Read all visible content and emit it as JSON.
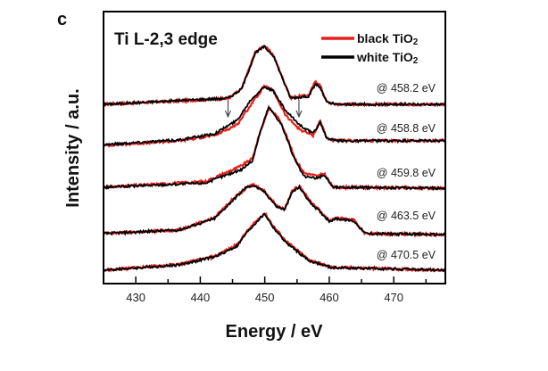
{
  "chart_data": {
    "type": "line",
    "panel_label": "c",
    "title": "Ti L-2,3 edge",
    "xlabel": "Energy / eV",
    "ylabel": "Intensity / a.u.",
    "xlim": [
      425,
      478
    ],
    "ylim": [
      0,
      10
    ],
    "xticks": [
      430,
      440,
      450,
      460,
      470
    ],
    "xminor_ticks": [
      435,
      445,
      455,
      465,
      475
    ],
    "y_tick_labels": false,
    "grid": false,
    "legend_position": "top-right",
    "legend": [
      {
        "label": "black TiO",
        "sub": "2",
        "color": "#e8201c"
      },
      {
        "label": "white TiO",
        "sub": "2",
        "color": "#000000"
      }
    ],
    "arrows_on_spectrum": "@ 458.8 eV",
    "arrows_x": [
      444.3,
      455.3
    ],
    "spectra": [
      {
        "label": "@ 458.2 eV",
        "white": [
          [
            425,
            6.59
          ],
          [
            444.3,
            6.82
          ],
          [
            446.4,
            7.15
          ],
          [
            448.5,
            8.46
          ],
          [
            449.9,
            8.72
          ],
          [
            451.3,
            8.39
          ],
          [
            454,
            6.82
          ],
          [
            456.8,
            6.89
          ],
          [
            457.9,
            7.34
          ],
          [
            458.6,
            7.2
          ],
          [
            459.6,
            6.66
          ],
          [
            461,
            6.59
          ],
          [
            478,
            6.59
          ]
        ],
        "black": [
          [
            425,
            6.59
          ],
          [
            444.3,
            6.8
          ],
          [
            446.4,
            7.15
          ],
          [
            448.5,
            8.5
          ],
          [
            449.9,
            8.74
          ],
          [
            451.3,
            8.42
          ],
          [
            454,
            6.84
          ],
          [
            456.8,
            6.92
          ],
          [
            457.9,
            7.45
          ],
          [
            458.6,
            7.28
          ],
          [
            459.6,
            6.68
          ],
          [
            461,
            6.59
          ],
          [
            478,
            6.59
          ]
        ]
      },
      {
        "label": "@ 458.8 eV",
        "white": [
          [
            425,
            5.11
          ],
          [
            436.7,
            5.28
          ],
          [
            442.2,
            5.51
          ],
          [
            445.7,
            6.0
          ],
          [
            447.8,
            6.75
          ],
          [
            449.9,
            7.25
          ],
          [
            451.3,
            7.08
          ],
          [
            453.3,
            6.33
          ],
          [
            455.4,
            5.84
          ],
          [
            457.5,
            5.51
          ],
          [
            458.6,
            5.93
          ],
          [
            459.6,
            5.34
          ],
          [
            461,
            5.25
          ],
          [
            478,
            5.25
          ]
        ],
        "black": [
          [
            425,
            5.08
          ],
          [
            436.7,
            5.25
          ],
          [
            442.2,
            5.45
          ],
          [
            445.7,
            5.84
          ],
          [
            447.8,
            6.56
          ],
          [
            449.9,
            7.25
          ],
          [
            451.3,
            7.1
          ],
          [
            453.3,
            6.16
          ],
          [
            455.4,
            5.67
          ],
          [
            457.5,
            5.45
          ],
          [
            458.6,
            6.0
          ],
          [
            459.6,
            5.34
          ],
          [
            461,
            5.25
          ],
          [
            478,
            5.25
          ]
        ]
      },
      {
        "label": "@ 459.8 eV",
        "white": [
          [
            425,
            3.54
          ],
          [
            440.8,
            3.7
          ],
          [
            446.4,
            4.2
          ],
          [
            448.1,
            4.52
          ],
          [
            449.2,
            5.51
          ],
          [
            450.6,
            6.49
          ],
          [
            451.7,
            6.16
          ],
          [
            452.6,
            5.84
          ],
          [
            454.7,
            4.52
          ],
          [
            456.1,
            3.93
          ],
          [
            458.2,
            3.87
          ],
          [
            459.2,
            4.0
          ],
          [
            460.6,
            3.54
          ],
          [
            478,
            3.51
          ]
        ],
        "black": [
          [
            425,
            3.54
          ],
          [
            440.8,
            3.75
          ],
          [
            446.4,
            4.33
          ],
          [
            448.1,
            4.6
          ],
          [
            449.2,
            5.51
          ],
          [
            450.6,
            6.45
          ],
          [
            451.7,
            6.2
          ],
          [
            452.6,
            5.9
          ],
          [
            454.7,
            4.6
          ],
          [
            456.1,
            4.07
          ],
          [
            458.2,
            3.95
          ],
          [
            459.2,
            4.05
          ],
          [
            460.6,
            3.54
          ],
          [
            478,
            3.51
          ]
        ]
      },
      {
        "label": "@ 463.5 eV",
        "white": [
          [
            425,
            1.84
          ],
          [
            436.7,
            1.97
          ],
          [
            442.2,
            2.39
          ],
          [
            445,
            3.05
          ],
          [
            447.1,
            3.54
          ],
          [
            448.2,
            3.61
          ],
          [
            449.9,
            3.38
          ],
          [
            451.9,
            2.82
          ],
          [
            453.1,
            2.72
          ],
          [
            454.3,
            3.38
          ],
          [
            455.4,
            3.54
          ],
          [
            456.8,
            3.05
          ],
          [
            460,
            2.3
          ],
          [
            461,
            2.39
          ],
          [
            463.8,
            2.3
          ],
          [
            465.6,
            1.84
          ],
          [
            478,
            1.8
          ]
        ],
        "black": [
          [
            425,
            1.84
          ],
          [
            436.7,
            1.97
          ],
          [
            442.2,
            2.42
          ],
          [
            445,
            3.1
          ],
          [
            447.1,
            3.5
          ],
          [
            448.2,
            3.65
          ],
          [
            449.9,
            3.42
          ],
          [
            451.9,
            2.85
          ],
          [
            453.1,
            2.75
          ],
          [
            454.3,
            3.42
          ],
          [
            455.4,
            3.6
          ],
          [
            456.8,
            3.1
          ],
          [
            460,
            2.33
          ],
          [
            461,
            2.42
          ],
          [
            463.8,
            2.33
          ],
          [
            465.6,
            1.84
          ],
          [
            478,
            1.8
          ]
        ]
      },
      {
        "label": "@ 470.5 eV",
        "white": [
          [
            425,
            0.49
          ],
          [
            436.7,
            0.69
          ],
          [
            442.2,
            0.98
          ],
          [
            445.7,
            1.38
          ],
          [
            447.1,
            1.84
          ],
          [
            449.2,
            2.39
          ],
          [
            450,
            2.56
          ],
          [
            451.3,
            2.07
          ],
          [
            453.3,
            1.51
          ],
          [
            456.8,
            0.85
          ],
          [
            460.3,
            0.59
          ],
          [
            478,
            0.49
          ]
        ],
        "black": [
          [
            425,
            0.49
          ],
          [
            436.7,
            0.71
          ],
          [
            442.2,
            1.0
          ],
          [
            445.7,
            1.42
          ],
          [
            447.1,
            1.88
          ],
          [
            449.2,
            2.42
          ],
          [
            450,
            2.6
          ],
          [
            451.3,
            2.12
          ],
          [
            453.3,
            1.56
          ],
          [
            456.8,
            0.88
          ],
          [
            460.3,
            0.6
          ],
          [
            478,
            0.49
          ]
        ]
      }
    ]
  }
}
